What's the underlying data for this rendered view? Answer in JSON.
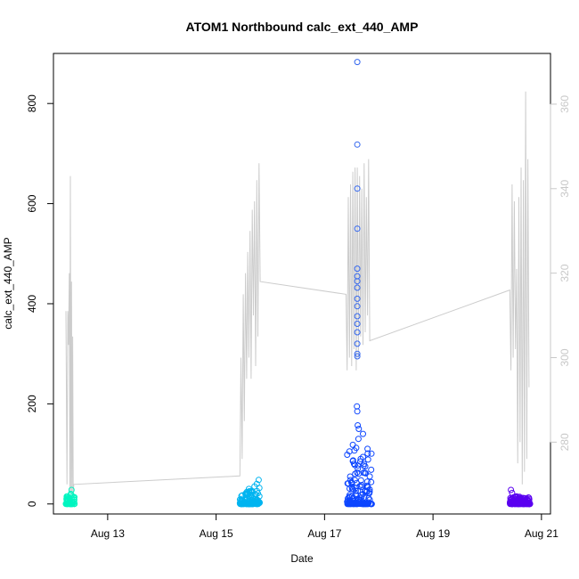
{
  "chart_data": {
    "type": "scatter",
    "title": "ATOM1 Northbound calc_ext_440_AMP",
    "xlabel": "Date",
    "ylabel": "calc_ext_440_AMP",
    "x_ticks": [
      "Aug 13",
      "Aug 15",
      "Aug 17",
      "Aug 19",
      "Aug 21"
    ],
    "xlim": [
      "2016-08-12 00:00",
      "2016-08-21 04:00"
    ],
    "ylim": [
      -20,
      900
    ],
    "y_ticks": [
      0,
      200,
      400,
      600,
      800
    ],
    "y2_ticks": [
      280,
      300,
      320,
      340,
      360
    ],
    "y2lim": [
      263,
      372
    ],
    "grid": false,
    "colors": {
      "line": "#cccccc",
      "right_axis": "#c8c8c8",
      "cluster1": "#00f5c0",
      "cluster2": "#00b4f0",
      "cluster3": "#0d46ff",
      "cluster3_outliers": "#3366ee",
      "cluster4": "#5a00f0"
    },
    "series": [
      {
        "color": "#00f5c0",
        "x_range": [
          "2016-08-12 05:30",
          "2016-08-12 09:30"
        ],
        "y_max": 28,
        "points": [
          [
            "2016-08-12 06:00",
            5
          ],
          [
            "2016-08-12 06:40",
            8
          ],
          [
            "2016-08-12 07:10",
            12
          ],
          [
            "2016-08-12 07:40",
            20
          ],
          [
            "2016-08-12 08:00",
            28
          ],
          [
            "2016-08-12 08:20",
            15
          ],
          [
            "2016-08-12 08:50",
            9
          ],
          [
            "2016-08-12 09:10",
            4
          ],
          [
            "2016-08-12 07:55",
            18
          ]
        ]
      },
      {
        "color": "#00b4f0",
        "x_range": [
          "2016-08-15 10:30",
          "2016-08-15 19:30"
        ],
        "y_max": 48,
        "points": [
          [
            "2016-08-15 11:30",
            10
          ],
          [
            "2016-08-15 13:00",
            20
          ],
          [
            "2016-08-15 14:30",
            30
          ],
          [
            "2016-08-15 16:00",
            25
          ],
          [
            "2016-08-15 17:00",
            35
          ],
          [
            "2016-08-15 18:00",
            40
          ],
          [
            "2016-08-15 18:50",
            48
          ],
          [
            "2016-08-15 19:10",
            32
          ],
          [
            "2016-08-15 15:20",
            18
          ]
        ]
      },
      {
        "color": "#0d46ff",
        "x_range": [
          "2016-08-17 10:00",
          "2016-08-17 21:00"
        ],
        "y_max": 195,
        "points": [
          [
            "2016-08-17 11:00",
            105
          ],
          [
            "2016-08-17 12:30",
            118
          ],
          [
            "2016-08-17 13:30",
            60
          ],
          [
            "2016-08-17 14:00",
            112
          ],
          [
            "2016-08-17 15:00",
            130
          ],
          [
            "2016-08-17 16:00",
            90
          ],
          [
            "2016-08-17 17:00",
            140
          ],
          [
            "2016-08-17 18:00",
            75
          ],
          [
            "2016-08-17 19:00",
            110
          ],
          [
            "2016-08-17 20:00",
            55
          ],
          [
            "2016-08-17 14:20",
            195
          ],
          [
            "2016-08-17 14:30",
            185
          ],
          [
            "2016-08-17 14:40",
            157
          ],
          [
            "2016-08-17 15:10",
            150
          ]
        ]
      },
      {
        "color": "#3366ee",
        "points": [
          [
            "2016-08-17 14:30",
            883
          ],
          [
            "2016-08-17 14:30",
            718
          ],
          [
            "2016-08-17 14:30",
            630
          ],
          [
            "2016-08-17 14:30",
            550
          ],
          [
            "2016-08-17 14:30",
            470
          ],
          [
            "2016-08-17 14:30",
            455
          ],
          [
            "2016-08-17 14:30",
            445
          ],
          [
            "2016-08-17 14:30",
            432
          ],
          [
            "2016-08-17 14:30",
            410
          ],
          [
            "2016-08-17 14:30",
            395
          ],
          [
            "2016-08-17 14:30",
            375
          ],
          [
            "2016-08-17 14:30",
            360
          ],
          [
            "2016-08-17 14:30",
            343
          ],
          [
            "2016-08-17 14:30",
            320
          ],
          [
            "2016-08-17 14:30",
            300
          ],
          [
            "2016-08-17 14:30",
            295
          ]
        ]
      },
      {
        "color": "#5a00f0",
        "x_range": [
          "2016-08-20 10:00",
          "2016-08-20 19:00"
        ],
        "y_max": 28,
        "points": [
          [
            "2016-08-20 10:30",
            28
          ],
          [
            "2016-08-20 11:00",
            22
          ],
          [
            "2016-08-20 13:00",
            15
          ],
          [
            "2016-08-20 15:00",
            10
          ],
          [
            "2016-08-20 17:00",
            8
          ],
          [
            "2016-08-20 18:30",
            12
          ]
        ]
      }
    ],
    "line_series": {
      "axis": "right",
      "points": [
        [
          "2016-08-12 05:30",
          311
        ],
        [
          "2016-08-12 06:00",
          270
        ],
        [
          "2016-08-12 06:20",
          311
        ],
        [
          "2016-08-12 06:40",
          303
        ],
        [
          "2016-08-12 07:00",
          320
        ],
        [
          "2016-08-12 07:15",
          268
        ],
        [
          "2016-08-12 07:30",
          343
        ],
        [
          "2016-08-12 07:45",
          268
        ],
        [
          "2016-08-12 08:00",
          318
        ],
        [
          "2016-08-12 08:15",
          267
        ],
        [
          "2016-08-12 08:30",
          305
        ],
        [
          "2016-08-12 08:45",
          267
        ],
        [
          "2016-08-12 09:00",
          270
        ],
        [
          "2016-08-15 10:30",
          272
        ],
        [
          "2016-08-15 11:00",
          300
        ],
        [
          "2016-08-15 11:30",
          276
        ],
        [
          "2016-08-15 12:00",
          315
        ],
        [
          "2016-08-15 12:30",
          285
        ],
        [
          "2016-08-15 13:00",
          320
        ],
        [
          "2016-08-15 13:30",
          295
        ],
        [
          "2016-08-15 14:00",
          325
        ],
        [
          "2016-08-15 14:30",
          300
        ],
        [
          "2016-08-15 15:00",
          330
        ],
        [
          "2016-08-15 15:30",
          295
        ],
        [
          "2016-08-15 16:00",
          335
        ],
        [
          "2016-08-15 16:30",
          310
        ],
        [
          "2016-08-15 17:00",
          337
        ],
        [
          "2016-08-15 17:30",
          298
        ],
        [
          "2016-08-15 18:00",
          342
        ],
        [
          "2016-08-15 18:30",
          305
        ],
        [
          "2016-08-15 19:00",
          346
        ],
        [
          "2016-08-15 19:30",
          318
        ],
        [
          "2016-08-17 09:30",
          315
        ],
        [
          "2016-08-17 10:00",
          297
        ],
        [
          "2016-08-17 10:30",
          338
        ],
        [
          "2016-08-17 11:00",
          300
        ],
        [
          "2016-08-17 11:30",
          341
        ],
        [
          "2016-08-17 12:00",
          298
        ],
        [
          "2016-08-17 12:30",
          344
        ],
        [
          "2016-08-17 13:00",
          302
        ],
        [
          "2016-08-17 13:30",
          345
        ],
        [
          "2016-08-17 14:00",
          297
        ],
        [
          "2016-08-17 14:30",
          345
        ],
        [
          "2016-08-17 15:00",
          300
        ],
        [
          "2016-08-17 15:30",
          343
        ],
        [
          "2016-08-17 16:00",
          305
        ],
        [
          "2016-08-17 16:30",
          340
        ],
        [
          "2016-08-17 17:00",
          303
        ],
        [
          "2016-08-17 17:30",
          346
        ],
        [
          "2016-08-17 18:00",
          306
        ],
        [
          "2016-08-17 18:30",
          338
        ],
        [
          "2016-08-17 19:00",
          310
        ],
        [
          "2016-08-17 19:30",
          347
        ],
        [
          "2016-08-17 20:00",
          304
        ],
        [
          "2016-08-20 10:00",
          316
        ],
        [
          "2016-08-20 10:30",
          297
        ],
        [
          "2016-08-20 11:00",
          341
        ],
        [
          "2016-08-20 11:30",
          300
        ],
        [
          "2016-08-20 12:00",
          337
        ],
        [
          "2016-08-20 12:30",
          302
        ],
        [
          "2016-08-20 13:00",
          321
        ],
        [
          "2016-08-20 13:30",
          275
        ],
        [
          "2016-08-20 14:00",
          338
        ],
        [
          "2016-08-20 14:30",
          280
        ],
        [
          "2016-08-20 15:00",
          345
        ],
        [
          "2016-08-20 15:30",
          270
        ],
        [
          "2016-08-20 16:00",
          342
        ],
        [
          "2016-08-20 16:30",
          273
        ],
        [
          "2016-08-20 17:00",
          363
        ],
        [
          "2016-08-20 17:30",
          276
        ],
        [
          "2016-08-20 18:00",
          347
        ],
        [
          "2016-08-20 18:30",
          293
        ]
      ]
    }
  }
}
